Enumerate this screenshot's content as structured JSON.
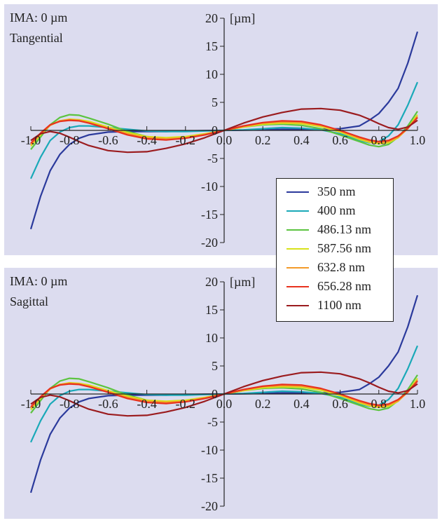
{
  "chart_data": [
    {
      "type": "line",
      "title_line1": "IMA: 0 µm",
      "title_line2": "Tangential",
      "unit_label": "[µm]",
      "xlim": [
        -1.0,
        1.0
      ],
      "ylim": [
        -20,
        20
      ],
      "x_ticks": [
        "-1.0",
        "-0.8",
        "-0.6",
        "-0.4",
        "-0.2",
        "0.0",
        "0.2",
        "0.4",
        "0.6",
        "0.8",
        "1.0"
      ],
      "y_ticks": [
        "20",
        "15",
        "10",
        "5",
        "0",
        "-5",
        "-10",
        "-15",
        "-20"
      ],
      "x": [
        -1.0,
        -0.95,
        -0.9,
        -0.85,
        -0.8,
        -0.75,
        -0.7,
        -0.6,
        -0.5,
        -0.4,
        -0.3,
        -0.2,
        -0.1,
        0.0,
        0.1,
        0.2,
        0.3,
        0.4,
        0.5,
        0.6,
        0.7,
        0.75,
        0.8,
        0.85,
        0.9,
        0.95,
        1.0
      ],
      "series": [
        {
          "name": "350 nm",
          "color": "#2b3a9c",
          "values": [
            -17.6,
            -11.8,
            -7.2,
            -4.3,
            -2.5,
            -1.4,
            -0.8,
            -0.3,
            -0.2,
            -0.2,
            -0.2,
            -0.1,
            -0.05,
            0.0,
            0.05,
            0.1,
            0.2,
            0.2,
            0.2,
            0.3,
            0.8,
            1.8,
            3.0,
            5.0,
            7.5,
            12.0,
            17.6
          ]
        },
        {
          "name": "400 nm",
          "color": "#1aa9b8",
          "values": [
            -8.6,
            -4.8,
            -1.8,
            -0.3,
            0.5,
            0.8,
            0.8,
            0.5,
            0.2,
            -0.1,
            -0.2,
            -0.2,
            -0.1,
            0.0,
            0.1,
            0.3,
            0.5,
            0.4,
            0.1,
            -0.6,
            -1.8,
            -2.2,
            -2.0,
            -1.0,
            1.0,
            4.5,
            8.6
          ]
        },
        {
          "name": "486.13 nm",
          "color": "#5cc440",
          "values": [
            -3.4,
            -1.2,
            1.0,
            2.3,
            2.8,
            2.7,
            2.2,
            1.1,
            -0.2,
            -1.1,
            -1.4,
            -1.2,
            -0.7,
            0.0,
            0.6,
            1.0,
            1.1,
            0.9,
            0.3,
            -0.8,
            -2.0,
            -2.6,
            -2.9,
            -2.5,
            -1.2,
            0.8,
            3.4
          ]
        },
        {
          "name": "587.56 nm",
          "color": "#d8e21a",
          "values": [
            -2.8,
            -0.8,
            0.9,
            1.7,
            2.0,
            1.9,
            1.6,
            0.6,
            -0.4,
            -1.1,
            -1.3,
            -1.1,
            -0.6,
            0.0,
            0.6,
            1.1,
            1.3,
            1.2,
            0.7,
            -0.3,
            -1.6,
            -2.1,
            -2.4,
            -2.2,
            -1.3,
            0.4,
            2.8
          ]
        },
        {
          "name": "632.8 nm",
          "color": "#f39a2a",
          "values": [
            -2.5,
            -0.6,
            0.9,
            1.7,
            1.9,
            1.8,
            1.4,
            0.4,
            -0.6,
            -1.3,
            -1.5,
            -1.3,
            -0.7,
            0.0,
            0.7,
            1.3,
            1.5,
            1.4,
            0.9,
            -0.1,
            -1.4,
            -1.9,
            -2.2,
            -2.0,
            -1.2,
            0.3,
            2.5
          ]
        },
        {
          "name": "656.28 nm",
          "color": "#e8321e",
          "values": [
            -2.3,
            -0.5,
            1.0,
            1.6,
            1.8,
            1.7,
            1.3,
            0.3,
            -0.8,
            -1.5,
            -1.7,
            -1.4,
            -0.8,
            0.0,
            0.8,
            1.4,
            1.7,
            1.6,
            1.0,
            0.0,
            -1.2,
            -1.7,
            -2.0,
            -1.8,
            -1.0,
            0.4,
            2.3
          ]
        },
        {
          "name": "1100 nm",
          "color": "#9b1c1f",
          "values": [
            -1.8,
            -0.6,
            -0.2,
            -0.5,
            -1.2,
            -2.0,
            -2.7,
            -3.6,
            -3.9,
            -3.8,
            -3.2,
            -2.4,
            -1.3,
            0.0,
            1.3,
            2.4,
            3.2,
            3.8,
            3.9,
            3.6,
            2.7,
            2.0,
            1.2,
            0.5,
            0.2,
            0.6,
            1.8
          ]
        }
      ],
      "grid": false
    },
    {
      "type": "line",
      "title_line1": "IMA: 0 µm",
      "title_line2": "Sagittal",
      "unit_label": "[µm]",
      "xlim": [
        -1.0,
        1.0
      ],
      "ylim": [
        -20,
        20
      ],
      "x_ticks": [
        "-1.0",
        "-0.8",
        "-0.6",
        "-0.4",
        "-0.2",
        "0.0",
        "0.2",
        "0.4",
        "0.6",
        "0.8",
        "1.0"
      ],
      "y_ticks": [
        "20",
        "15",
        "10",
        "5",
        "0",
        "-5",
        "-10",
        "-15",
        "-20"
      ],
      "x": [
        -1.0,
        -0.95,
        -0.9,
        -0.85,
        -0.8,
        -0.75,
        -0.7,
        -0.6,
        -0.5,
        -0.4,
        -0.3,
        -0.2,
        -0.1,
        0.0,
        0.1,
        0.2,
        0.3,
        0.4,
        0.5,
        0.6,
        0.7,
        0.75,
        0.8,
        0.85,
        0.9,
        0.95,
        1.0
      ],
      "series": [
        {
          "name": "350 nm",
          "color": "#2b3a9c",
          "values": [
            -17.6,
            -11.8,
            -7.2,
            -4.3,
            -2.5,
            -1.4,
            -0.8,
            -0.3,
            -0.2,
            -0.2,
            -0.2,
            -0.1,
            -0.05,
            0.0,
            0.05,
            0.1,
            0.2,
            0.2,
            0.2,
            0.3,
            0.8,
            1.8,
            3.0,
            5.0,
            7.5,
            12.0,
            17.6
          ]
        },
        {
          "name": "400 nm",
          "color": "#1aa9b8",
          "values": [
            -8.6,
            -4.8,
            -1.8,
            -0.3,
            0.5,
            0.8,
            0.8,
            0.5,
            0.2,
            -0.1,
            -0.2,
            -0.2,
            -0.1,
            0.0,
            0.1,
            0.3,
            0.5,
            0.4,
            0.1,
            -0.6,
            -1.8,
            -2.2,
            -2.0,
            -1.0,
            1.0,
            4.5,
            8.6
          ]
        },
        {
          "name": "486.13 nm",
          "color": "#5cc440",
          "values": [
            -3.4,
            -1.2,
            1.0,
            2.3,
            2.8,
            2.7,
            2.2,
            1.1,
            -0.2,
            -1.1,
            -1.4,
            -1.2,
            -0.7,
            0.0,
            0.6,
            1.0,
            1.1,
            0.9,
            0.3,
            -0.8,
            -2.0,
            -2.6,
            -2.9,
            -2.5,
            -1.2,
            0.8,
            3.4
          ]
        },
        {
          "name": "587.56 nm",
          "color": "#d8e21a",
          "values": [
            -2.8,
            -0.8,
            0.9,
            1.7,
            2.0,
            1.9,
            1.6,
            0.6,
            -0.4,
            -1.1,
            -1.3,
            -1.1,
            -0.6,
            0.0,
            0.6,
            1.1,
            1.3,
            1.2,
            0.7,
            -0.3,
            -1.6,
            -2.1,
            -2.4,
            -2.2,
            -1.3,
            0.4,
            2.8
          ]
        },
        {
          "name": "632.8 nm",
          "color": "#f39a2a",
          "values": [
            -2.5,
            -0.6,
            0.9,
            1.7,
            1.9,
            1.8,
            1.4,
            0.4,
            -0.6,
            -1.3,
            -1.5,
            -1.3,
            -0.7,
            0.0,
            0.7,
            1.3,
            1.5,
            1.4,
            0.9,
            -0.1,
            -1.4,
            -1.9,
            -2.2,
            -2.0,
            -1.2,
            0.3,
            2.5
          ]
        },
        {
          "name": "656.28 nm",
          "color": "#e8321e",
          "values": [
            -2.3,
            -0.5,
            1.0,
            1.6,
            1.8,
            1.7,
            1.3,
            0.3,
            -0.8,
            -1.5,
            -1.7,
            -1.4,
            -0.8,
            0.0,
            0.8,
            1.4,
            1.7,
            1.6,
            1.0,
            0.0,
            -1.2,
            -1.7,
            -2.0,
            -1.8,
            -1.0,
            0.4,
            2.3
          ]
        },
        {
          "name": "1100 nm",
          "color": "#9b1c1f",
          "values": [
            -1.8,
            -0.6,
            -0.2,
            -0.5,
            -1.2,
            -2.0,
            -2.7,
            -3.6,
            -3.9,
            -3.8,
            -3.2,
            -2.4,
            -1.3,
            0.0,
            1.3,
            2.4,
            3.2,
            3.8,
            3.9,
            3.6,
            2.7,
            2.0,
            1.2,
            0.5,
            0.2,
            0.6,
            1.8
          ]
        }
      ],
      "grid": false
    }
  ],
  "legend": {
    "items": [
      {
        "label": "350 nm",
        "color": "#2b3a9c"
      },
      {
        "label": "400 nm",
        "color": "#1aa9b8"
      },
      {
        "label": "486.13 nm",
        "color": "#5cc440"
      },
      {
        "label": "587.56 nm",
        "color": "#d8e21a"
      },
      {
        "label": "632.8 nm",
        "color": "#f39a2a"
      },
      {
        "label": "656.28 nm",
        "color": "#e8321e"
      },
      {
        "label": "1100 nm",
        "color": "#9b1c1f"
      }
    ]
  }
}
